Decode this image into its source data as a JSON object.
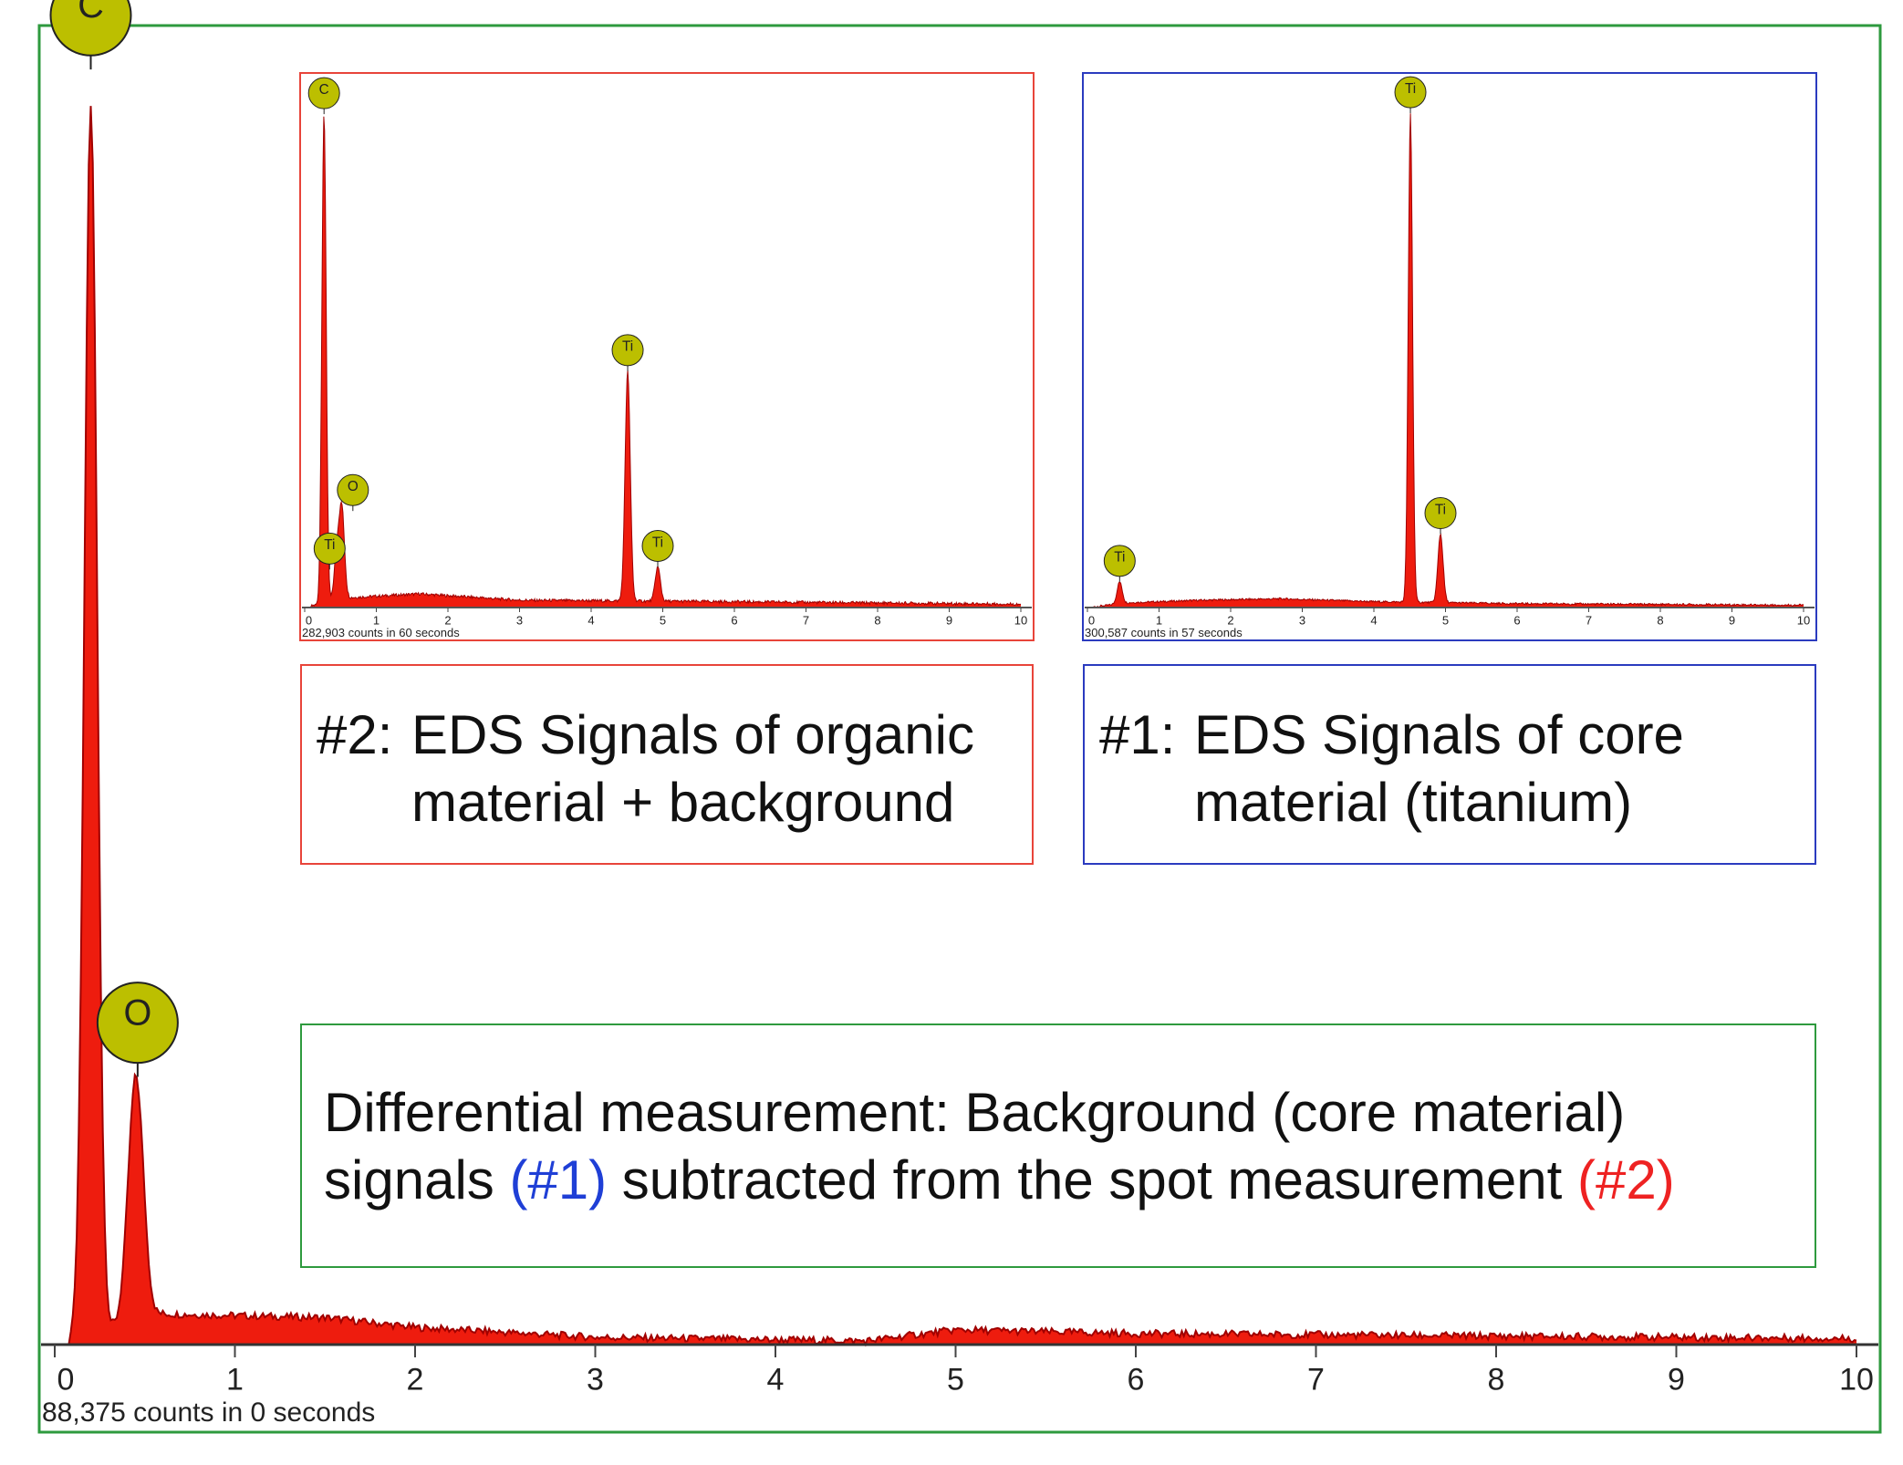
{
  "colors": {
    "spectrum_fill": "#ee1c0e",
    "spectrum_line": "#a00000",
    "marker_fill": "#bcbf00",
    "frame_green": "#2e9a3e",
    "frame_red": "#e8443a",
    "frame_blue": "#2b3bbf",
    "ref_blue": "#1f3fd6",
    "ref_red": "#ee2222"
  },
  "captions": {
    "spot": {
      "prefix": "#2:",
      "line1": "EDS Signals of organic",
      "line2": "material + background"
    },
    "core": {
      "prefix": "#1:",
      "line1": "EDS Signals of core",
      "line2": "material (titanium)"
    },
    "diff": {
      "line1": "Differential measurement: Background (core material)",
      "line2_a": "signals ",
      "line2_ref1": "(#1)",
      "line2_b": " subtracted from the spot measurement ",
      "line2_ref2": "(#2)"
    }
  },
  "chart_data": [
    {
      "type": "area",
      "role": "main differential spectrum",
      "xlim": [
        0,
        10
      ],
      "ticks": [
        0,
        1,
        2,
        3,
        4,
        5,
        6,
        7,
        8,
        9,
        10
      ],
      "footer": "88,375 counts in 0 seconds",
      "peaks": [
        {
          "label": "C",
          "energy_keV": 0.2,
          "height": 1.0
        },
        {
          "label": "O",
          "energy_keV": 0.45,
          "height": 0.2
        }
      ],
      "continuum": [
        [
          0.6,
          0.025
        ],
        [
          1.5,
          0.022
        ],
        [
          2.0,
          0.014
        ],
        [
          3.0,
          0.006
        ],
        [
          4.5,
          0.003
        ],
        [
          5.0,
          0.012
        ],
        [
          6.0,
          0.009
        ],
        [
          8.0,
          0.007
        ],
        [
          10.0,
          0.005
        ]
      ]
    },
    {
      "type": "area",
      "role": "spot measurement (#2)",
      "xlim": [
        0,
        10
      ],
      "ticks": [
        0,
        1,
        2,
        3,
        4,
        5,
        6,
        7,
        8,
        9,
        10
      ],
      "footer": "282,903 counts in 60 seconds",
      "peaks": [
        {
          "label": "C",
          "energy_keV": 0.27,
          "height": 1.0
        },
        {
          "label": "O",
          "energy_keV": 0.52,
          "height": 0.18
        },
        {
          "label": "Ti",
          "energy_keV": 0.45,
          "height": 0.1
        },
        {
          "label": "Ti",
          "energy_keV": 4.51,
          "height": 0.47
        },
        {
          "label": "Ti",
          "energy_keV": 4.93,
          "height": 0.07
        }
      ],
      "continuum": [
        [
          0.6,
          0.02
        ],
        [
          1.6,
          0.028
        ],
        [
          3.0,
          0.015
        ],
        [
          6.0,
          0.012
        ],
        [
          10.0,
          0.007
        ]
      ]
    },
    {
      "type": "area",
      "role": "core material (#1)",
      "xlim": [
        0,
        10
      ],
      "ticks": [
        0,
        1,
        2,
        3,
        4,
        5,
        6,
        7,
        8,
        9,
        10
      ],
      "footer": "300,587 counts in 57 seconds",
      "peaks": [
        {
          "label": "Ti",
          "energy_keV": 0.45,
          "height": 0.045
        },
        {
          "label": "Ti",
          "energy_keV": 4.51,
          "height": 1.0
        },
        {
          "label": "Ti",
          "energy_keV": 4.93,
          "height": 0.14
        }
      ],
      "continuum": [
        [
          0.6,
          0.01
        ],
        [
          1.6,
          0.015
        ],
        [
          2.7,
          0.018
        ],
        [
          4.0,
          0.012
        ],
        [
          6.0,
          0.008
        ],
        [
          10.0,
          0.005
        ]
      ]
    }
  ]
}
